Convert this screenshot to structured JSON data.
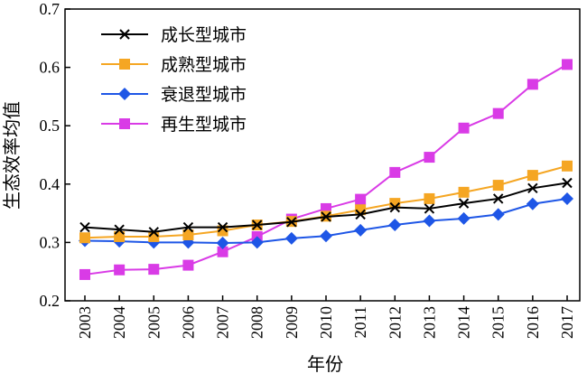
{
  "chart_data": {
    "type": "line",
    "xlabel": "年份",
    "ylabel": "生态效率均值",
    "ylim": [
      0.2,
      0.7
    ],
    "yticks": [
      "0.2",
      "0.3",
      "0.4",
      "0.5",
      "0.6",
      "0.7"
    ],
    "categories": [
      "2003",
      "2004",
      "2005",
      "2006",
      "2007",
      "2008",
      "2009",
      "2010",
      "2011",
      "2012",
      "2013",
      "2014",
      "2015",
      "2016",
      "2017"
    ],
    "grid": false,
    "legend_position": "top-left",
    "series": [
      {
        "name": "成长型城市",
        "color": "#000000",
        "marker": "x",
        "values": [
          0.326,
          0.322,
          0.318,
          0.326,
          0.326,
          0.33,
          0.335,
          0.344,
          0.348,
          0.36,
          0.358,
          0.367,
          0.375,
          0.393,
          0.402
        ]
      },
      {
        "name": "成熟型城市",
        "color": "#F5A623",
        "marker": "square",
        "values": [
          0.308,
          0.31,
          0.31,
          0.313,
          0.32,
          0.33,
          0.336,
          0.345,
          0.356,
          0.367,
          0.375,
          0.386,
          0.398,
          0.415,
          0.431
        ]
      },
      {
        "name": "衰退型城市",
        "color": "#1E56E6",
        "marker": "diamond",
        "values": [
          0.303,
          0.302,
          0.3,
          0.3,
          0.299,
          0.3,
          0.307,
          0.311,
          0.321,
          0.33,
          0.337,
          0.341,
          0.348,
          0.366,
          0.375
        ]
      },
      {
        "name": "再生型城市",
        "color": "#D93BE6",
        "marker": "square",
        "values": [
          0.245,
          0.253,
          0.254,
          0.261,
          0.284,
          0.31,
          0.34,
          0.358,
          0.374,
          0.42,
          0.446,
          0.496,
          0.521,
          0.571,
          0.605
        ]
      }
    ]
  }
}
